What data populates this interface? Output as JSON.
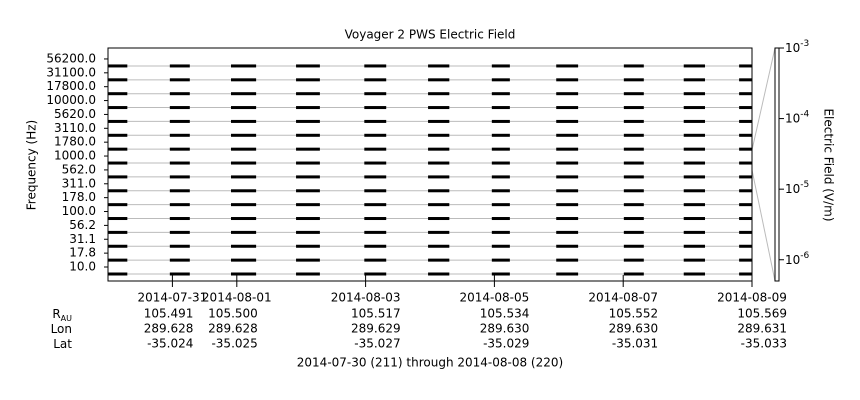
{
  "chart_data": {
    "type": "channel-trace",
    "title": "Voyager 2 PWS Electric Field",
    "ylabel": "Frequency (Hz)",
    "categories": [
      "10.0",
      "17.8",
      "31.1",
      "56.2",
      "100.0",
      "178.0",
      "311.0",
      "562.0",
      "1000.0",
      "1780.0",
      "3110.0",
      "5620.0",
      "10000.0",
      "17800.0",
      "31100.0",
      "56200.0"
    ],
    "xlim": [
      211,
      221
    ],
    "xticks": [
      {
        "value": 212,
        "label": "2014-07-31"
      },
      {
        "value": 213,
        "label": "2014-08-01"
      },
      {
        "value": 215,
        "label": "2014-08-03"
      },
      {
        "value": 217,
        "label": "2014-08-05"
      },
      {
        "value": 219,
        "label": "2014-08-07"
      },
      {
        "value": 221,
        "label": "2014-08-09"
      }
    ],
    "segments": [
      [
        211.0,
        211.3
      ],
      [
        211.96,
        212.27
      ],
      [
        212.91,
        213.3
      ],
      [
        213.92,
        214.29
      ],
      [
        214.98,
        215.32
      ],
      [
        215.97,
        216.3
      ],
      [
        216.96,
        217.24
      ],
      [
        217.96,
        218.3
      ],
      [
        219.01,
        219.32
      ],
      [
        219.94,
        220.27
      ],
      [
        220.8,
        221.0
      ]
    ],
    "color": "#000000",
    "grid": true,
    "colorbar": {
      "label": "Electric Field (V/m)",
      "log": true,
      "zlim": [
        5e-07,
        0.001
      ],
      "ticks": [
        {
          "value": 0.001,
          "label": "10",
          "exponent": "-3"
        },
        {
          "value": 0.0001,
          "label": "10",
          "exponent": "-4"
        },
        {
          "value": 1e-05,
          "label": "10",
          "exponent": "-5"
        },
        {
          "value": 1e-06,
          "label": "10",
          "exponent": "-6"
        }
      ]
    },
    "ephemeris": {
      "rows": [
        {
          "label": "R",
          "sub": "AU",
          "values": [
            "105.491",
            "105.500",
            "105.517",
            "105.534",
            "105.552",
            "105.569"
          ]
        },
        {
          "label": "Lon",
          "values": [
            "289.628",
            "289.628",
            "289.629",
            "289.630",
            "289.630",
            "289.631"
          ]
        },
        {
          "label": "Lat",
          "values": [
            "-35.024",
            "-35.025",
            "-35.027",
            "-35.029",
            "-35.031",
            "-35.033"
          ]
        }
      ]
    },
    "footer": "2014-07-30 (211) through 2014-08-08 (220)"
  }
}
